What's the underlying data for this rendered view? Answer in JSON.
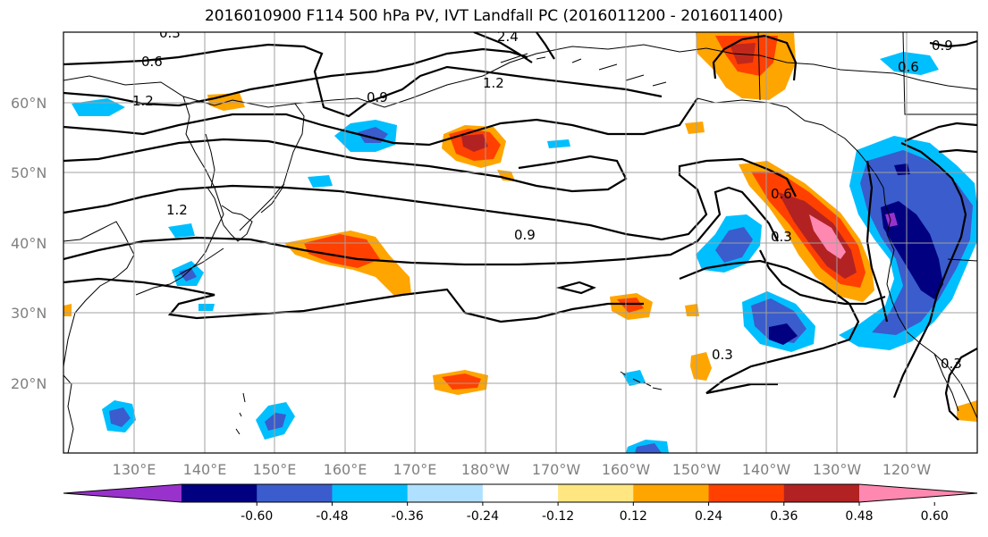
{
  "title": "2016010900 F114 500 hPa PV, IVT Landfall PC (2016011200 - 2016011400)",
  "lat_labels": [
    "60°N",
    "50°N",
    "40°N",
    "30°N",
    "20°N"
  ],
  "lon_labels": [
    "130°E",
    "140°E",
    "150°E",
    "160°E",
    "170°E",
    "180°W",
    "170°W",
    "160°W",
    "150°W",
    "140°W",
    "130°W",
    "120°W"
  ],
  "contour_labels": [
    "0.6",
    "1.2",
    "0.9",
    "1.2",
    "2.4",
    "0.9",
    "0.6",
    "0.3",
    "0.3",
    "0.9",
    "0.6",
    "0.3",
    "1.2",
    "0.3"
  ],
  "colorbar": {
    "ticks": [
      "-0.60",
      "-0.48",
      "-0.36",
      "-0.24",
      "-0.12",
      "0.12",
      "0.24",
      "0.36",
      "0.48",
      "0.60"
    ],
    "colors": [
      "#9932cc",
      "#000080",
      "#3a5ccc",
      "#00bfff",
      "#b0e0ff",
      "#ffffff",
      "#ffe680",
      "#ffa500",
      "#ff4000",
      "#b22222",
      "#ff88b0"
    ]
  },
  "colors": {
    "negative_strong": "#000080",
    "negative_mid": "#3a5ccc",
    "negative_light": "#00bfff",
    "negative_pale": "#b0e0ff",
    "positive_pale": "#ffe680",
    "positive_light": "#ffa500",
    "positive_mid": "#ff4000",
    "positive_strong": "#b22222",
    "positive_max": "#ff88b0",
    "grid": "#a0a0a0"
  }
}
